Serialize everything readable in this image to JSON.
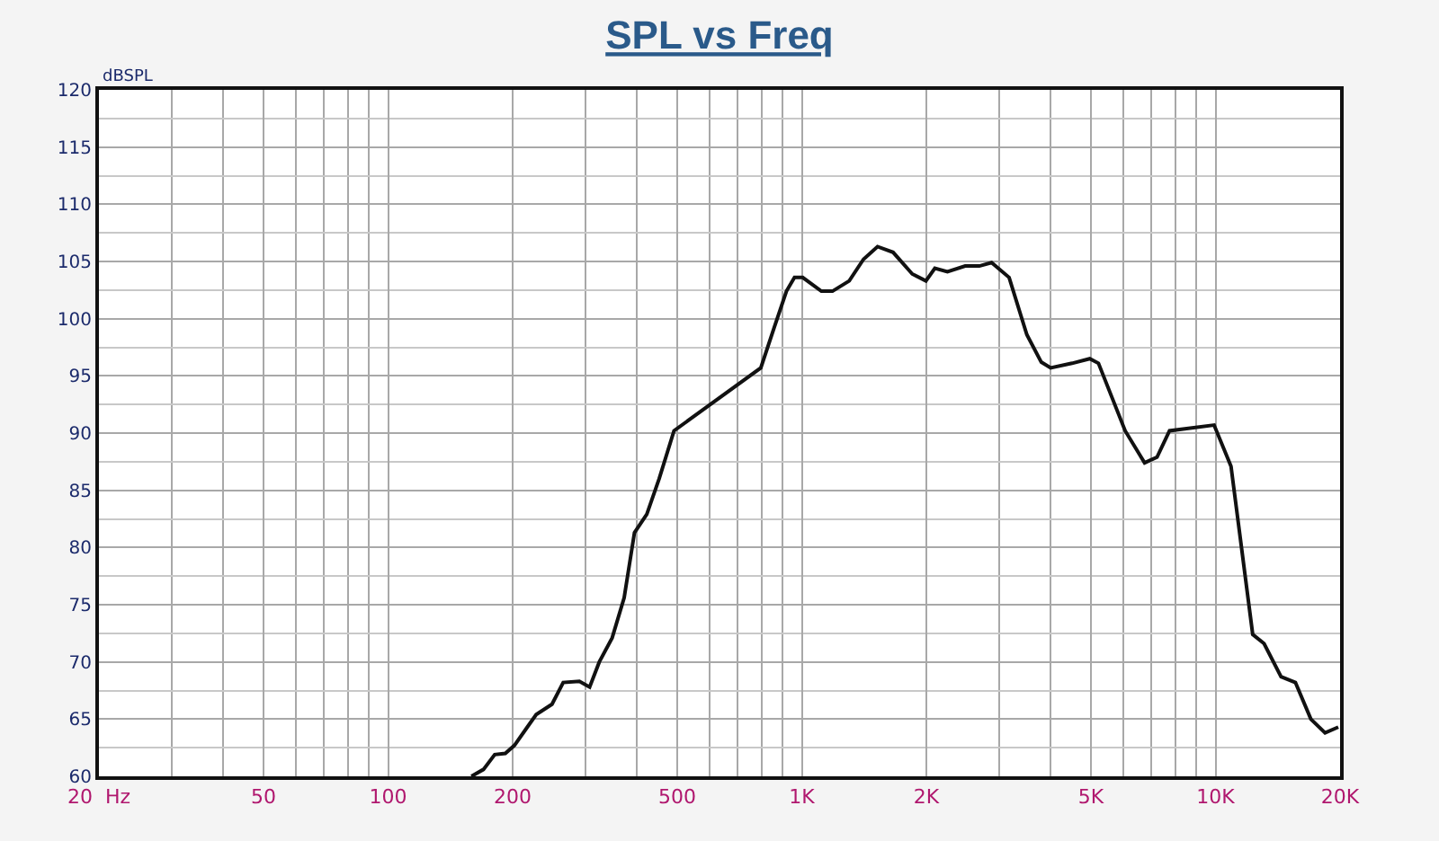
{
  "chart_data": {
    "type": "line",
    "title": "SPL vs Freq",
    "ylabel": "dBSPL",
    "log": "x",
    "grid": true,
    "legend": false,
    "marker": "none",
    "line_style": "solid",
    "xlim": [
      20,
      20000
    ],
    "ylim": [
      60,
      120
    ],
    "xticks": [
      {
        "value": 20,
        "label": "20  Hz"
      },
      50,
      100,
      200,
      500,
      {
        "value": 1000,
        "label": "1K"
      },
      {
        "value": 2000,
        "label": "2K"
      },
      {
        "value": 5000,
        "label": "5K"
      },
      {
        "value": 10000,
        "label": "10K"
      },
      {
        "value": 20000,
        "label": "20K"
      }
    ],
    "yticks": [
      60,
      65,
      70,
      75,
      80,
      85,
      90,
      95,
      100,
      105,
      110,
      115,
      120
    ],
    "series": [
      {
        "color": "#111111",
        "x": [
          159,
          170,
          181,
          192,
          202,
          217,
          228,
          249,
          265,
          290,
          307,
          324,
          348,
          372,
          394,
          422,
          452,
          491,
          796,
          857,
          918,
          960,
          1005,
          1115,
          1186,
          1302,
          1410,
          1524,
          1662,
          1850,
          1995,
          2097,
          2249,
          2482,
          2686,
          2875,
          3170,
          3499,
          3792,
          3995,
          4500,
          4966,
          5213,
          6047,
          6738,
          7221,
          7741,
          9920,
          10900,
          12300,
          13100,
          14400,
          15600,
          17000,
          18400,
          19800
        ],
        "values": [
          60.0,
          60.6,
          61.9,
          62.0,
          62.7,
          64.3,
          65.4,
          66.3,
          68.2,
          68.3,
          67.8,
          70.0,
          72.1,
          75.6,
          81.3,
          82.9,
          86.0,
          90.2,
          95.7,
          99.2,
          102.4,
          103.6,
          103.6,
          102.4,
          102.4,
          103.3,
          105.2,
          106.3,
          105.8,
          103.9,
          103.3,
          104.4,
          104.1,
          104.6,
          104.6,
          104.9,
          103.6,
          98.6,
          96.2,
          95.7,
          96.1,
          96.5,
          96.1,
          90.2,
          87.4,
          87.9,
          90.2,
          90.7,
          87.1,
          72.4,
          71.6,
          68.7,
          68.2,
          65.0,
          63.8,
          64.3
        ]
      }
    ]
  }
}
